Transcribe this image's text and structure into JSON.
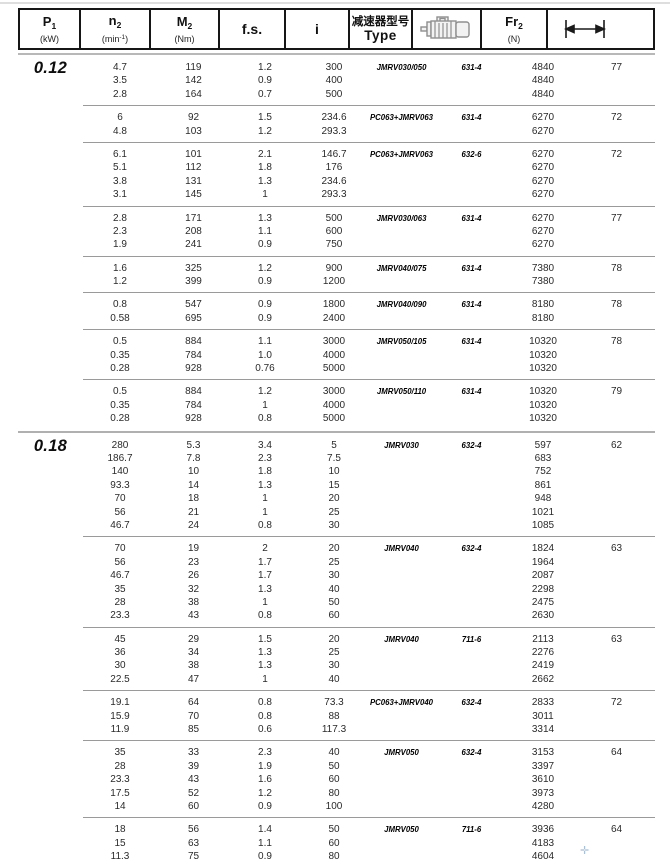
{
  "page": {
    "watermark_cross": "✛"
  },
  "header": {
    "p1": {
      "main": "P",
      "sub": "1",
      "unit": "(kW)"
    },
    "n2": {
      "main": "n",
      "sub": "2",
      "unit_pre": "(min",
      "unit_sup": "-1",
      "unit_post": ")"
    },
    "m2": {
      "main": "M",
      "sub": "2",
      "unit": "(Nm)"
    },
    "fs": {
      "label": "f.s."
    },
    "i": {
      "label": "i"
    },
    "type": {
      "line1": "减速器型号",
      "line2": "Type"
    },
    "fr2": {
      "main": "Fr",
      "sub": "2",
      "unit": "(N)"
    }
  },
  "table": {
    "columns_order": [
      "P1",
      "n2",
      "M2",
      "f.s.",
      "i",
      "Type",
      "motor",
      "Fr2",
      "dim"
    ],
    "sections": [
      {
        "power": "0.12",
        "blocks": [
          {
            "type": "JMRV030/050",
            "motor": "631-4",
            "dim": "77",
            "rows": [
              [
                "4.7",
                "119",
                "1.2",
                "300",
                "4840"
              ],
              [
                "3.5",
                "142",
                "0.9",
                "400",
                "4840"
              ],
              [
                "2.8",
                "164",
                "0.7",
                "500",
                "4840"
              ]
            ]
          },
          {
            "type": "PC063+JMRV063",
            "motor": "631-4",
            "dim": "72",
            "rows": [
              [
                "6",
                "92",
                "1.5",
                "234.6",
                "6270"
              ],
              [
                "4.8",
                "103",
                "1.2",
                "293.3",
                "6270"
              ]
            ]
          },
          {
            "type": "PC063+JMRV063",
            "motor": "632-6",
            "dim": "72",
            "rows": [
              [
                "6.1",
                "101",
                "2.1",
                "146.7",
                "6270"
              ],
              [
                "5.1",
                "112",
                "1.8",
                "176",
                "6270"
              ],
              [
                "3.8",
                "131",
                "1.3",
                "234.6",
                "6270"
              ],
              [
                "3.1",
                "145",
                "1",
                "293.3",
                "6270"
              ]
            ]
          },
          {
            "type": "JMRV030/063",
            "motor": "631-4",
            "dim": "77",
            "rows": [
              [
                "2.8",
                "171",
                "1.3",
                "500",
                "6270"
              ],
              [
                "2.3",
                "208",
                "1.1",
                "600",
                "6270"
              ],
              [
                "1.9",
                "241",
                "0.9",
                "750",
                "6270"
              ]
            ]
          },
          {
            "type": "JMRV040/075",
            "motor": "631-4",
            "dim": "78",
            "rows": [
              [
                "1.6",
                "325",
                "1.2",
                "900",
                "7380"
              ],
              [
                "1.2",
                "399",
                "0.9",
                "1200",
                "7380"
              ]
            ]
          },
          {
            "type": "JMRV040/090",
            "motor": "631-4",
            "dim": "78",
            "rows": [
              [
                "0.8",
                "547",
                "0.9",
                "1800",
                "8180"
              ],
              [
                "0.58",
                "695",
                "0.9",
                "2400",
                "8180"
              ]
            ]
          },
          {
            "type": "JMRV050/105",
            "motor": "631-4",
            "dim": "78",
            "rows": [
              [
                "0.5",
                "884",
                "1.1",
                "3000",
                "10320"
              ],
              [
                "0.35",
                "784",
                "1.0",
                "4000",
                "10320"
              ],
              [
                "0.28",
                "928",
                "0.76",
                "5000",
                "10320"
              ]
            ]
          },
          {
            "type": "JMRV050/110",
            "motor": "631-4",
            "dim": "79",
            "rows": [
              [
                "0.5",
                "884",
                "1.2",
                "3000",
                "10320"
              ],
              [
                "0.35",
                "784",
                "1",
                "4000",
                "10320"
              ],
              [
                "0.28",
                "928",
                "0.8",
                "5000",
                "10320"
              ]
            ]
          }
        ]
      },
      {
        "power": "0.18",
        "blocks": [
          {
            "type": "JMRV030",
            "motor": "632-4",
            "dim": "62",
            "rows": [
              [
                "280",
                "5.3",
                "3.4",
                "5",
                "597"
              ],
              [
                "186.7",
                "7.8",
                "2.3",
                "7.5",
                "683"
              ],
              [
                "140",
                "10",
                "1.8",
                "10",
                "752"
              ],
              [
                "93.3",
                "14",
                "1.3",
                "15",
                "861"
              ],
              [
                "70",
                "18",
                "1",
                "20",
                "948"
              ],
              [
                "56",
                "21",
                "1",
                "25",
                "1021"
              ],
              [
                "46.7",
                "24",
                "0.8",
                "30",
                "1085"
              ]
            ]
          },
          {
            "type": "JMRV040",
            "motor": "632-4",
            "dim": "63",
            "rows": [
              [
                "70",
                "19",
                "2",
                "20",
                "1824"
              ],
              [
                "56",
                "23",
                "1.7",
                "25",
                "1964"
              ],
              [
                "46.7",
                "26",
                "1.7",
                "30",
                "2087"
              ],
              [
                "35",
                "32",
                "1.3",
                "40",
                "2298"
              ],
              [
                "28",
                "38",
                "1",
                "50",
                "2475"
              ],
              [
                "23.3",
                "43",
                "0.8",
                "60",
                "2630"
              ]
            ]
          },
          {
            "type": "JMRV040",
            "motor": "711-6",
            "dim": "63",
            "rows": [
              [
                "45",
                "29",
                "1.5",
                "20",
                "2113"
              ],
              [
                "36",
                "34",
                "1.3",
                "25",
                "2276"
              ],
              [
                "30",
                "38",
                "1.3",
                "30",
                "2419"
              ],
              [
                "22.5",
                "47",
                "1",
                "40",
                "2662"
              ]
            ]
          },
          {
            "type": "PC063+JMRV040",
            "motor": "632-4",
            "dim": "72",
            "rows": [
              [
                "19.1",
                "64",
                "0.8",
                "73.3",
                "2833"
              ],
              [
                "15.9",
                "70",
                "0.8",
                "88",
                "3011"
              ],
              [
                "11.9",
                "85",
                "0.6",
                "117.3",
                "3314"
              ]
            ]
          },
          {
            "type": "JMRV050",
            "motor": "632-4",
            "dim": "64",
            "rows": [
              [
                "35",
                "33",
                "2.3",
                "40",
                "3153"
              ],
              [
                "28",
                "39",
                "1.9",
                "50",
                "3397"
              ],
              [
                "23.3",
                "43",
                "1.6",
                "60",
                "3610"
              ],
              [
                "17.5",
                "52",
                "1.2",
                "80",
                "3973"
              ],
              [
                "14",
                "60",
                "0.9",
                "100",
                "4280"
              ]
            ]
          },
          {
            "type": "JMRV050",
            "motor": "711-6",
            "dim": "64",
            "rows": [
              [
                "18",
                "56",
                "1.4",
                "50",
                "3936"
              ],
              [
                "15",
                "63",
                "1.1",
                "60",
                "4183"
              ],
              [
                "11.3",
                "75",
                "0.9",
                "80",
                "4604"
              ]
            ]
          }
        ]
      }
    ]
  }
}
